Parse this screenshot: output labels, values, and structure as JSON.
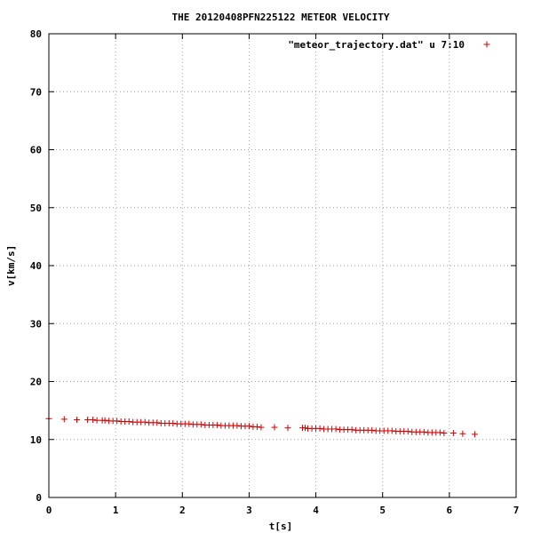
{
  "chart_data": {
    "type": "scatter",
    "title": "THE 20120408PFN225122 METEOR VELOCITY",
    "xlabel": "t[s]",
    "ylabel": "v[km/s]",
    "xlim": [
      0,
      7
    ],
    "ylim": [
      0,
      80
    ],
    "x_ticks": [
      "0",
      "1",
      "2",
      "3",
      "4",
      "5",
      "6",
      "7"
    ],
    "y_ticks": [
      "0",
      "10",
      "20",
      "30",
      "40",
      "50",
      "60",
      "70",
      "80"
    ],
    "grid": true,
    "legend_position": "top-right",
    "series": [
      {
        "name": "\"meteor_trajectory.dat\" u 7:10",
        "color": "#cc0000",
        "marker": "plus",
        "x": [
          0.0,
          0.23,
          0.42,
          0.58,
          0.66,
          0.72,
          0.8,
          0.84,
          0.9,
          0.96,
          1.02,
          1.08,
          1.14,
          1.2,
          1.26,
          1.32,
          1.38,
          1.44,
          1.5,
          1.56,
          1.62,
          1.68,
          1.74,
          1.8,
          1.86,
          1.92,
          1.98,
          2.04,
          2.1,
          2.16,
          2.22,
          2.28,
          2.34,
          2.4,
          2.46,
          2.52,
          2.58,
          2.64,
          2.7,
          2.76,
          2.82,
          2.88,
          2.94,
          3.0,
          3.06,
          3.12,
          3.18,
          3.38,
          3.58,
          3.8,
          3.84,
          3.88,
          3.94,
          4.0,
          4.06,
          4.12,
          4.18,
          4.24,
          4.3,
          4.36,
          4.42,
          4.48,
          4.54,
          4.6,
          4.66,
          4.72,
          4.78,
          4.84,
          4.9,
          4.96,
          5.02,
          5.08,
          5.14,
          5.2,
          5.26,
          5.32,
          5.38,
          5.44,
          5.5,
          5.56,
          5.62,
          5.68,
          5.74,
          5.8,
          5.86,
          5.92,
          6.06,
          6.2,
          6.38
        ],
        "y": [
          13.6,
          13.5,
          13.4,
          13.4,
          13.4,
          13.3,
          13.3,
          13.3,
          13.2,
          13.2,
          13.2,
          13.1,
          13.1,
          13.1,
          13.0,
          13.0,
          13.0,
          13.0,
          12.9,
          12.9,
          12.9,
          12.8,
          12.8,
          12.8,
          12.8,
          12.7,
          12.7,
          12.7,
          12.7,
          12.6,
          12.6,
          12.6,
          12.5,
          12.5,
          12.5,
          12.5,
          12.4,
          12.4,
          12.4,
          12.4,
          12.4,
          12.3,
          12.3,
          12.3,
          12.2,
          12.2,
          12.1,
          12.1,
          12.0,
          12.0,
          12.0,
          11.9,
          11.9,
          11.9,
          11.9,
          11.8,
          11.8,
          11.8,
          11.8,
          11.7,
          11.7,
          11.7,
          11.7,
          11.6,
          11.6,
          11.6,
          11.6,
          11.6,
          11.5,
          11.5,
          11.5,
          11.5,
          11.5,
          11.4,
          11.4,
          11.4,
          11.4,
          11.3,
          11.3,
          11.3,
          11.3,
          11.2,
          11.2,
          11.2,
          11.2,
          11.1,
          11.1,
          11.0,
          10.9
        ]
      }
    ]
  }
}
